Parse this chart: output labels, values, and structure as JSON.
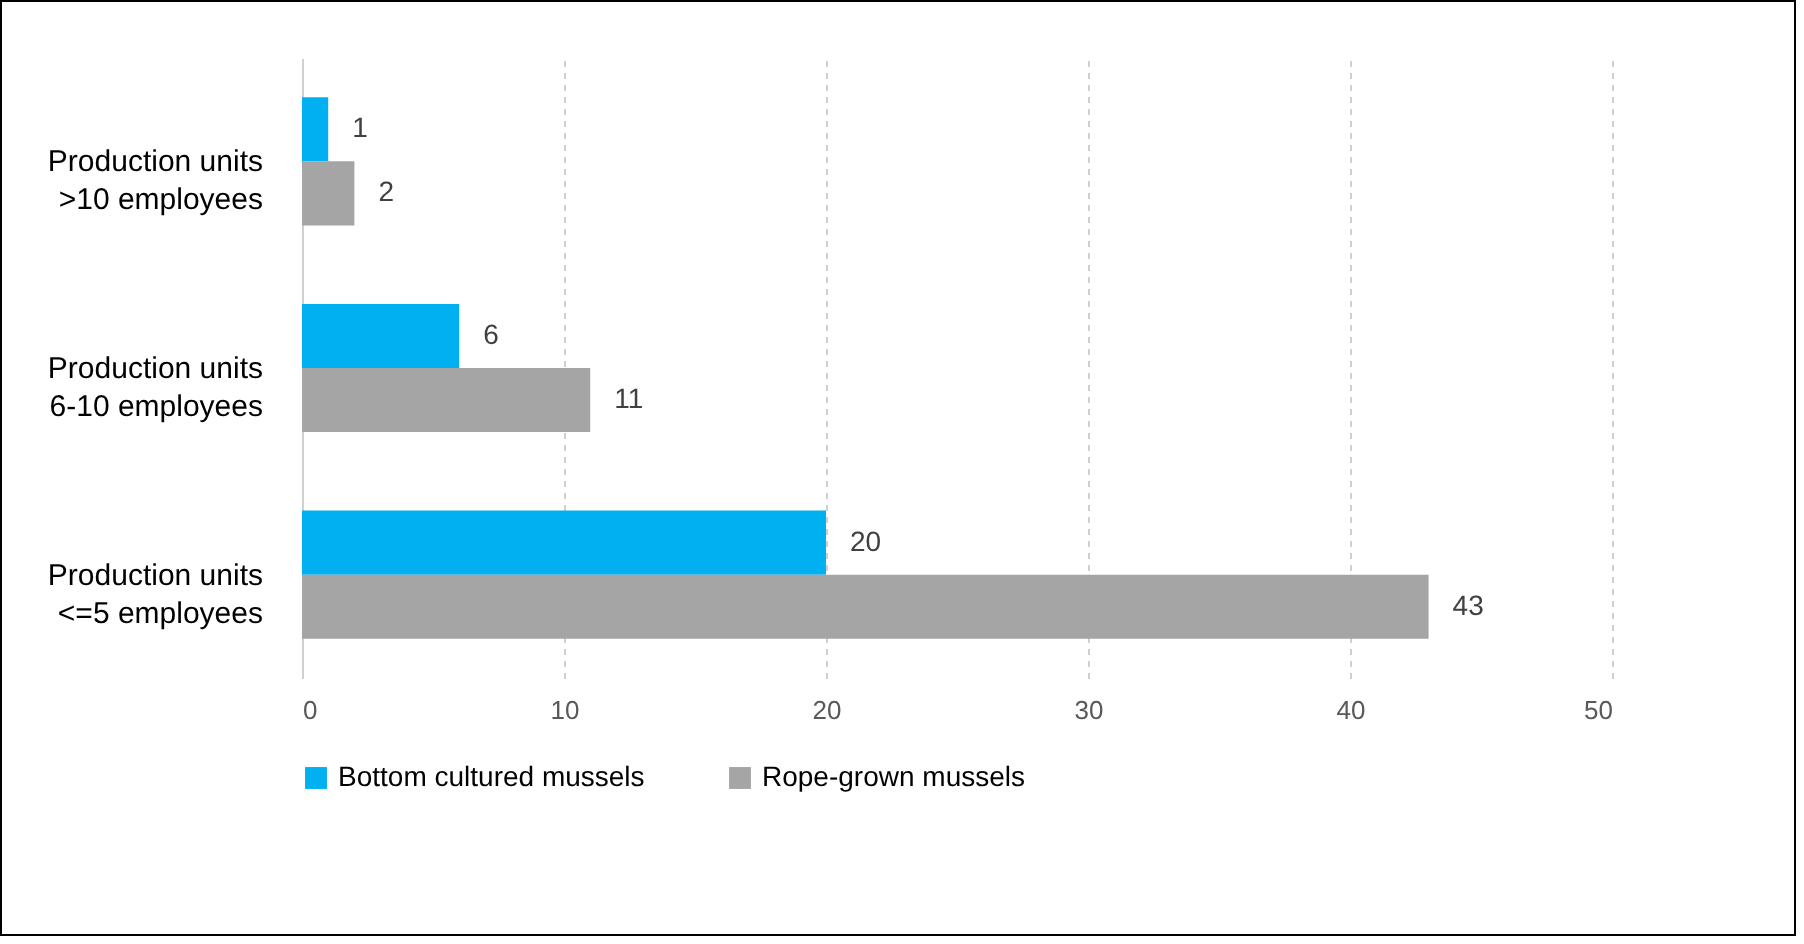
{
  "chart_data": {
    "type": "bar",
    "orientation": "horizontal",
    "categories": [
      "Production units\n>10 employees",
      "Production units\n6-10 employees",
      "Production units\n<=5 employees"
    ],
    "series": [
      {
        "name": "Bottom cultured mussels",
        "color": "#00b0f0",
        "values": [
          1,
          6,
          20
        ]
      },
      {
        "name": "Rope-grown mussels",
        "color": "#a5a5a5",
        "values": [
          2,
          11,
          43
        ]
      }
    ],
    "xlim": [
      0,
      50
    ],
    "xticks": [
      0,
      10,
      20,
      30,
      40,
      50
    ],
    "grid": "x",
    "legend": "bottom",
    "data_labels": true
  }
}
